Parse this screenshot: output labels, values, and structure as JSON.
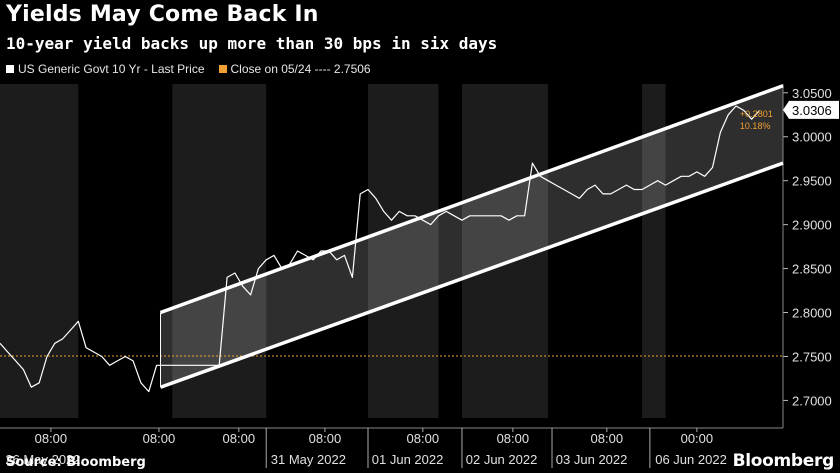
{
  "header": {
    "title": "Yields May Come Back In",
    "subtitle": "10-year yield backs up more than 30 bps in six days"
  },
  "legend": {
    "series_label": "US Generic Govt 10 Yr - Last Price",
    "close_label": "Close on 05/24 ---- 2.7506",
    "series_color": "#ffffff",
    "close_color": "#f0a030"
  },
  "footer": {
    "source": "Source: Bloomberg",
    "brand": "Bloomberg"
  },
  "chart_data": {
    "type": "line",
    "y_ticks": [
      "3.0500",
      "3.0000",
      "2.9500",
      "2.9000",
      "2.8500",
      "2.8000",
      "2.7500",
      "2.7000"
    ],
    "ylim": [
      2.68,
      3.06
    ],
    "x_tick_labels": [
      "08:00",
      "08:00",
      "08:00",
      "08:00",
      "08:00",
      "08:00",
      "08:00",
      "00:00"
    ],
    "x_day_labels": [
      "26 May 2022",
      "31 May 2022",
      "01 Jun 2022",
      "02 Jun 2022",
      "03 Jun 2022",
      "06 Jun 2022"
    ],
    "last_price_label": "3.0306",
    "change_label": "+0.2801",
    "change_pct_label": "10.18%",
    "reference_line": {
      "label": "Close on 05/24",
      "value": 2.7506
    },
    "x_range": [
      0,
      100
    ],
    "series": [
      {
        "name": "US Generic Govt 10 Yr - Last Price",
        "x": [
          0,
          1,
          2,
          3,
          4,
          5,
          6,
          7,
          8,
          9,
          10,
          11,
          12,
          13,
          14,
          15,
          16,
          17,
          18,
          19,
          20,
          21,
          22,
          23,
          24,
          25,
          26,
          27,
          28,
          29,
          30,
          31,
          32,
          33,
          34,
          35,
          36,
          37,
          38,
          39,
          40,
          41,
          42,
          43,
          44,
          45,
          46,
          47,
          48,
          49,
          50,
          51,
          52,
          53,
          54,
          55,
          56,
          57,
          58,
          59,
          60,
          61,
          62,
          63,
          64,
          65,
          66,
          67,
          68,
          69,
          70,
          71,
          72,
          73,
          74,
          75,
          76,
          77,
          78,
          79,
          80,
          81,
          82,
          83,
          84,
          85,
          86,
          87,
          88,
          89,
          90,
          91,
          92,
          93,
          94,
          95,
          96,
          97
        ],
        "values": [
          2.765,
          2.755,
          2.745,
          2.735,
          2.715,
          2.72,
          2.75,
          2.765,
          2.77,
          2.78,
          2.79,
          2.76,
          2.755,
          2.75,
          2.74,
          2.745,
          2.75,
          2.745,
          2.72,
          2.71,
          2.74,
          2.74,
          2.74,
          2.74,
          2.74,
          2.74,
          2.74,
          2.74,
          2.74,
          2.84,
          2.845,
          2.83,
          2.82,
          2.85,
          2.86,
          2.865,
          2.85,
          2.855,
          2.87,
          2.865,
          2.86,
          2.87,
          2.87,
          2.86,
          2.865,
          2.84,
          2.935,
          2.94,
          2.93,
          2.915,
          2.905,
          2.915,
          2.91,
          2.91,
          2.905,
          2.9,
          2.91,
          2.915,
          2.91,
          2.905,
          2.91,
          2.91,
          2.91,
          2.91,
          2.91,
          2.905,
          2.91,
          2.91,
          2.97,
          2.955,
          2.95,
          2.945,
          2.94,
          2.935,
          2.93,
          2.94,
          2.945,
          2.935,
          2.935,
          2.94,
          2.945,
          2.94,
          2.94,
          2.945,
          2.95,
          2.945,
          2.95,
          2.955,
          2.955,
          2.96,
          2.955,
          2.965,
          3.005,
          3.025,
          3.035,
          3.03,
          3.02,
          3.03
        ]
      }
    ]
  }
}
